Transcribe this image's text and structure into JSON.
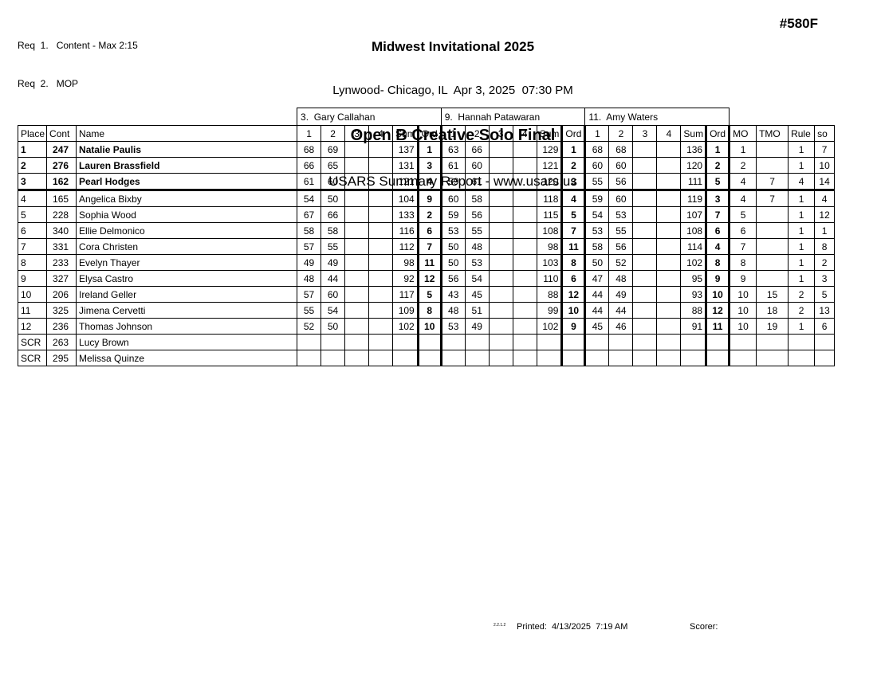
{
  "req_notes": [
    "Req  1.   Content - Max 2:15",
    "Req  2.   MOP"
  ],
  "header": {
    "event_title": "Midwest Invitational 2025",
    "venue_line": "Lynwood- Chicago, IL  Apr 3, 2025  07:30 PM",
    "category_title": "Open B Creative Solo Final",
    "report_line": "USARS Summary Report - www.usars.us",
    "event_code": "#580F"
  },
  "table": {
    "judges": [
      "3.  Gary Callahan",
      "9.  Hannah Patawaran",
      "11.  Amy Waters"
    ],
    "columns": {
      "place": "Place",
      "cont": "Cont",
      "name": "Name",
      "judge_cols": [
        "1",
        "2",
        "3",
        "4",
        "Sum",
        "Ord"
      ],
      "right_cols": [
        "MO",
        "TMO",
        "Rule",
        "so"
      ]
    },
    "rows": [
      {
        "place": "1",
        "cont": "247",
        "name": "Natalie Paulis",
        "bold": true,
        "sep": false,
        "j": [
          [
            "68",
            "69",
            "",
            "",
            "137",
            "1"
          ],
          [
            "63",
            "66",
            "",
            "",
            "129",
            "1"
          ],
          [
            "68",
            "68",
            "",
            "",
            "136",
            "1"
          ]
        ],
        "right": [
          "1",
          "",
          "1",
          "7"
        ]
      },
      {
        "place": "2",
        "cont": "276",
        "name": "Lauren Brassfield",
        "bold": true,
        "sep": false,
        "j": [
          [
            "66",
            "65",
            "",
            "",
            "131",
            "3"
          ],
          [
            "61",
            "60",
            "",
            "",
            "121",
            "2"
          ],
          [
            "60",
            "60",
            "",
            "",
            "120",
            "2"
          ]
        ],
        "right": [
          "2",
          "",
          "1",
          "10"
        ]
      },
      {
        "place": "3",
        "cont": "162",
        "name": "Pearl Hodges",
        "bold": true,
        "sep": true,
        "j": [
          [
            "61",
            "60",
            "",
            "",
            "121",
            "4"
          ],
          [
            "59",
            "61",
            "",
            "",
            "120",
            "3"
          ],
          [
            "55",
            "56",
            "",
            "",
            "111",
            "5"
          ]
        ],
        "right": [
          "4",
          "7",
          "4",
          "14"
        ]
      },
      {
        "place": "4",
        "cont": "165",
        "name": "Angelica Bixby",
        "bold": false,
        "sep": false,
        "j": [
          [
            "54",
            "50",
            "",
            "",
            "104",
            "9"
          ],
          [
            "60",
            "58",
            "",
            "",
            "118",
            "4"
          ],
          [
            "59",
            "60",
            "",
            "",
            "119",
            "3"
          ]
        ],
        "right": [
          "4",
          "7",
          "1",
          "4"
        ]
      },
      {
        "place": "5",
        "cont": "228",
        "name": "Sophia Wood",
        "bold": false,
        "sep": false,
        "j": [
          [
            "67",
            "66",
            "",
            "",
            "133",
            "2"
          ],
          [
            "59",
            "56",
            "",
            "",
            "115",
            "5"
          ],
          [
            "54",
            "53",
            "",
            "",
            "107",
            "7"
          ]
        ],
        "right": [
          "5",
          "",
          "1",
          "12"
        ]
      },
      {
        "place": "6",
        "cont": "340",
        "name": "Ellie Delmonico",
        "bold": false,
        "sep": false,
        "j": [
          [
            "58",
            "58",
            "",
            "",
            "116",
            "6"
          ],
          [
            "53",
            "55",
            "",
            "",
            "108",
            "7"
          ],
          [
            "53",
            "55",
            "",
            "",
            "108",
            "6"
          ]
        ],
        "right": [
          "6",
          "",
          "1",
          "1"
        ]
      },
      {
        "place": "7",
        "cont": "331",
        "name": "Cora Christen",
        "bold": false,
        "sep": false,
        "j": [
          [
            "57",
            "55",
            "",
            "",
            "112",
            "7"
          ],
          [
            "50",
            "48",
            "",
            "",
            "98",
            "11"
          ],
          [
            "58",
            "56",
            "",
            "",
            "114",
            "4"
          ]
        ],
        "right": [
          "7",
          "",
          "1",
          "8"
        ]
      },
      {
        "place": "8",
        "cont": "233",
        "name": "Evelyn Thayer",
        "bold": false,
        "sep": false,
        "j": [
          [
            "49",
            "49",
            "",
            "",
            "98",
            "11"
          ],
          [
            "50",
            "53",
            "",
            "",
            "103",
            "8"
          ],
          [
            "50",
            "52",
            "",
            "",
            "102",
            "8"
          ]
        ],
        "right": [
          "8",
          "",
          "1",
          "2"
        ]
      },
      {
        "place": "9",
        "cont": "327",
        "name": "Elysa Castro",
        "bold": false,
        "sep": false,
        "j": [
          [
            "48",
            "44",
            "",
            "",
            "92",
            "12"
          ],
          [
            "56",
            "54",
            "",
            "",
            "110",
            "6"
          ],
          [
            "47",
            "48",
            "",
            "",
            "95",
            "9"
          ]
        ],
        "right": [
          "9",
          "",
          "1",
          "3"
        ]
      },
      {
        "place": "10",
        "cont": "206",
        "name": "Ireland Geller",
        "bold": false,
        "sep": false,
        "j": [
          [
            "57",
            "60",
            "",
            "",
            "117",
            "5"
          ],
          [
            "43",
            "45",
            "",
            "",
            "88",
            "12"
          ],
          [
            "44",
            "49",
            "",
            "",
            "93",
            "10"
          ]
        ],
        "right": [
          "10",
          "15",
          "2",
          "5"
        ]
      },
      {
        "place": "11",
        "cont": "325",
        "name": "Jimena Cervetti",
        "bold": false,
        "sep": false,
        "j": [
          [
            "55",
            "54",
            "",
            "",
            "109",
            "8"
          ],
          [
            "48",
            "51",
            "",
            "",
            "99",
            "10"
          ],
          [
            "44",
            "44",
            "",
            "",
            "88",
            "12"
          ]
        ],
        "right": [
          "10",
          "18",
          "2",
          "13"
        ]
      },
      {
        "place": "12",
        "cont": "236",
        "name": "Thomas Johnson",
        "bold": false,
        "sep": false,
        "j": [
          [
            "52",
            "50",
            "",
            "",
            "102",
            "10"
          ],
          [
            "53",
            "49",
            "",
            "",
            "102",
            "9"
          ],
          [
            "45",
            "46",
            "",
            "",
            "91",
            "11"
          ]
        ],
        "right": [
          "10",
          "19",
          "1",
          "6"
        ]
      },
      {
        "place": "SCR",
        "cont": "263",
        "name": "Lucy Brown",
        "bold": false,
        "sep": false,
        "j": [
          [
            "",
            "",
            "",
            "",
            "",
            ""
          ],
          [
            "",
            "",
            "",
            "",
            "",
            ""
          ],
          [
            "",
            "",
            "",
            "",
            "",
            ""
          ]
        ],
        "right": [
          "",
          "",
          "",
          ""
        ]
      },
      {
        "place": "SCR",
        "cont": "295",
        "name": "Melissa Quinze",
        "bold": false,
        "sep": false,
        "j": [
          [
            "",
            "",
            "",
            "",
            "",
            ""
          ],
          [
            "",
            "",
            "",
            "",
            "",
            ""
          ],
          [
            "",
            "",
            "",
            "",
            "",
            ""
          ]
        ],
        "right": [
          "",
          "",
          "",
          ""
        ]
      }
    ]
  },
  "footer": {
    "version": "2.2.1.2",
    "printed": "Printed:  4/13/2025  7:19 AM",
    "scorer": "Scorer:"
  }
}
